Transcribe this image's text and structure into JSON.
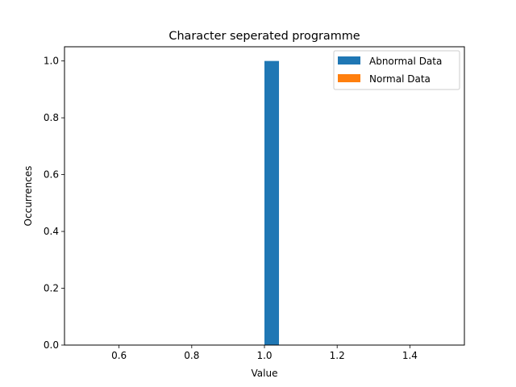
{
  "chart_data": {
    "type": "bar",
    "title": "Character seperated programme",
    "xlabel": "Value",
    "ylabel": "Occurrences",
    "xlim": [
      0.45,
      1.55
    ],
    "ylim": [
      0,
      1.05
    ],
    "xticks": [
      0.6,
      0.8,
      1.0,
      1.2,
      1.4
    ],
    "yticks": [
      0.0,
      0.2,
      0.4,
      0.6,
      0.8,
      1.0
    ],
    "bar_width": 0.04,
    "grid": false,
    "legend_position": "upper right",
    "series": [
      {
        "name": "Abnormal Data",
        "color": "#1f77b4",
        "bars": [
          {
            "x": 1.02,
            "y": 1.0
          }
        ]
      },
      {
        "name": "Normal Data",
        "color": "#ff7f0e",
        "bars": []
      }
    ]
  }
}
